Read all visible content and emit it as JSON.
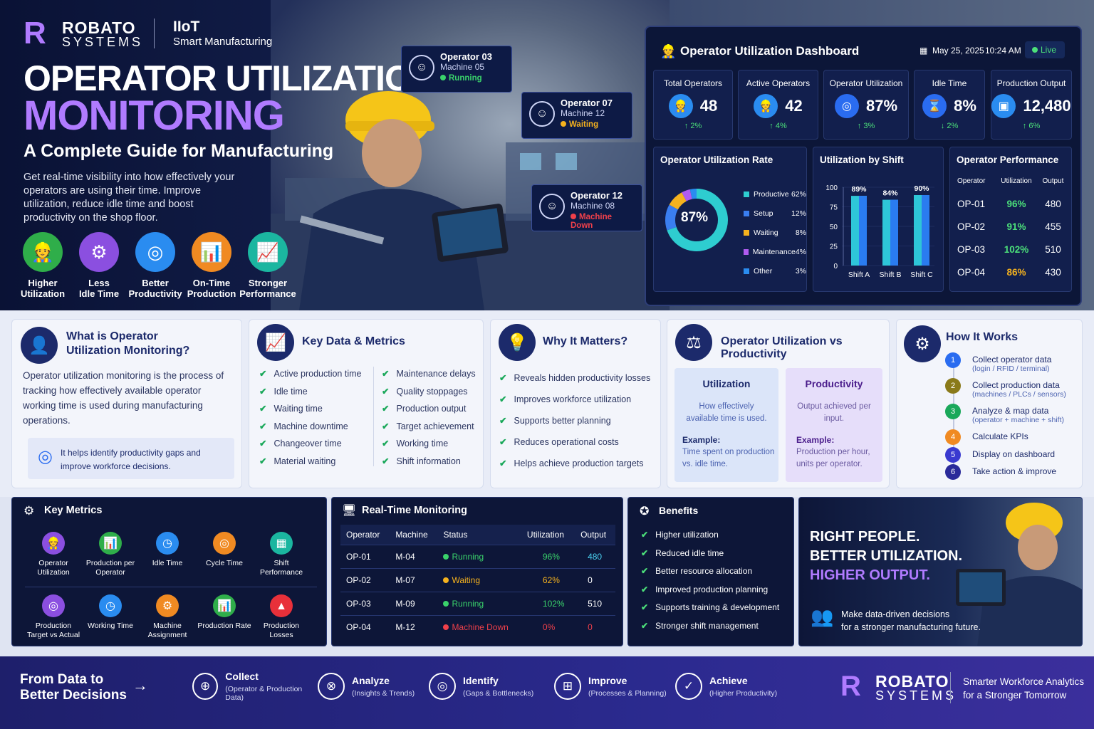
{
  "brand": {
    "name": "ROBATO",
    "sub": "SYSTEMS",
    "tag1": "IIoT",
    "tag2": "Smart Manufacturing"
  },
  "hero": {
    "title1": "OPERATOR UTILIZATION",
    "title2": "MONITORING",
    "subtitle": "A Complete Guide for Manufacturing",
    "desc": "Get real-time visibility into how effectively your operators are using their time. Improve utilization, reduce idle time and boost productivity on the shop floor.",
    "benefits": [
      {
        "l1": "Higher",
        "l2": "Utilization",
        "color": "#2fae4a",
        "icon": "operator-icon"
      },
      {
        "l1": "Less",
        "l2": "Idle Time",
        "color": "#8b4fe0",
        "icon": "gear-icon"
      },
      {
        "l1": "Better",
        "l2": "Productivity",
        "color": "#2a8cf0",
        "icon": "target-icon"
      },
      {
        "l1": "On-Time",
        "l2": "Production",
        "color": "#f08a22",
        "icon": "chart-icon"
      },
      {
        "l1": "Stronger",
        "l2": "Performance",
        "color": "#1bb6a0",
        "icon": "growth-icon"
      }
    ],
    "operators": [
      {
        "name": "Operator 03",
        "machine": "Machine 05",
        "status": "Running",
        "color": "#3ad26b"
      },
      {
        "name": "Operator 07",
        "machine": "Machine 12",
        "status": "Waiting",
        "color": "#f5b21e"
      },
      {
        "name": "Operator 12",
        "machine": "Machine 08",
        "status": "Machine Down",
        "color": "#f0404a"
      }
    ]
  },
  "dashboard": {
    "title": "Operator Utilization Dashboard",
    "date": "May 25, 2025",
    "time": "10:24 AM",
    "live": "Live",
    "kpis": [
      {
        "label": "Total Operators",
        "value": "48",
        "change": "↑ 2%",
        "color": "#2a8cf0",
        "icon": "operator-icon"
      },
      {
        "label": "Active Operators",
        "value": "42",
        "change": "↑ 4%",
        "color": "#2a8cf0",
        "icon": "operator-icon"
      },
      {
        "label": "Operator Utilization",
        "value": "87%",
        "change": "↑ 3%",
        "color": "#2a6cf0",
        "icon": "target-icon"
      },
      {
        "label": "Idle Time",
        "value": "8%",
        "change": "↓ 2%",
        "color": "#2a6cf0",
        "icon": "hourglass-icon"
      },
      {
        "label": "Production Output",
        "value": "12,480",
        "change": "↑ 6%",
        "color": "#2a8cf0",
        "icon": "box-icon"
      }
    ],
    "rate": {
      "title": "Operator Utilization Rate",
      "center": "87%",
      "items": [
        {
          "label": "Productive",
          "value": "62%",
          "pct": 62,
          "color": "#2ecdd0"
        },
        {
          "label": "Setup",
          "value": "12%",
          "pct": 12,
          "color": "#3a7ef0"
        },
        {
          "label": "Waiting",
          "value": "8%",
          "pct": 8,
          "color": "#f5b21e"
        },
        {
          "label": "Maintenance",
          "value": "4%",
          "pct": 4,
          "color": "#b05bf0"
        },
        {
          "label": "Other",
          "value": "3%",
          "pct": 3,
          "color": "#2a8cf0"
        }
      ]
    },
    "shift": {
      "title": "Utilization by Shift",
      "ticks": [
        "100",
        "75",
        "50",
        "25",
        "0"
      ],
      "bars": [
        {
          "label": "Shift A",
          "value": 89,
          "text": "89%"
        },
        {
          "label": "Shift B",
          "value": 84,
          "text": "84%"
        },
        {
          "label": "Shift C",
          "value": 90,
          "text": "90%"
        }
      ]
    },
    "perf": {
      "title": "Operator Performance",
      "headers": [
        "Operator",
        "Utilization",
        "Output"
      ],
      "rows": [
        [
          "OP-01",
          "96%",
          "480"
        ],
        [
          "OP-02",
          "91%",
          "455"
        ],
        [
          "OP-03",
          "102%",
          "510"
        ],
        [
          "OP-04",
          "86%",
          "430"
        ]
      ]
    }
  },
  "what": {
    "title1": "What is Operator",
    "title2": "Utilization Monitoring?",
    "body": "Operator utilization monitoring is the process of tracking how effectively available operator working time is used during manufacturing operations.",
    "note": "It helps identify productivity gaps and improve workforce decisions."
  },
  "keydata": {
    "title": "Key Data & Metrics",
    "left": [
      "Active production time",
      "Idle time",
      "Waiting time",
      "Machine downtime",
      "Changeover time",
      "Material waiting"
    ],
    "right": [
      "Maintenance delays",
      "Quality stoppages",
      "Production output",
      "Target achievement",
      "Working time",
      "Shift information"
    ]
  },
  "why": {
    "title": "Why It Matters?",
    "items": [
      "Reveals hidden productivity losses",
      "Improves workforce utilization",
      "Supports better planning",
      "Reduces operational costs",
      "Helps achieve production targets"
    ]
  },
  "vs": {
    "title": "Operator Utilization vs Productivity",
    "util": {
      "h": "Utilization",
      "d": "How effectively available time is used.",
      "ex": "Example:",
      "exd": "Time spent on production vs. idle time."
    },
    "prod": {
      "h": "Productivity",
      "d": "Output achieved per input.",
      "ex": "Example:",
      "exd": "Production per hour, units per operator."
    }
  },
  "how": {
    "title": "How It Works",
    "steps": [
      {
        "n": "1",
        "t": "Collect operator data",
        "s": "(login / RFID / terminal)",
        "c": "#2a6cf0"
      },
      {
        "n": "2",
        "t": "Collect production data",
        "s": "(machines / PLCs / sensors)",
        "c": "#8a7a1a"
      },
      {
        "n": "3",
        "t": "Analyze & map data",
        "s": "(operator + machine + shift)",
        "c": "#1aa85a"
      },
      {
        "n": "4",
        "t": "Calculate KPIs",
        "s": "",
        "c": "#f08a22"
      },
      {
        "n": "5",
        "t": "Display on dashboard",
        "s": "",
        "c": "#3a3ad0"
      },
      {
        "n": "6",
        "t": "Take action & improve",
        "s": "",
        "c": "#2a2a9a"
      }
    ]
  },
  "keymetrics": {
    "title": "Key Metrics",
    "row1": [
      {
        "l": "Operator Utilization",
        "c": "#8b4fe0",
        "icon": "operator-icon"
      },
      {
        "l": "Production per Operator",
        "c": "#2fae4a",
        "icon": "chart-icon"
      },
      {
        "l": "Idle Time",
        "c": "#2a8cf0",
        "icon": "clock-icon"
      },
      {
        "l": "Cycle Time",
        "c": "#f08a22",
        "icon": "target-icon"
      },
      {
        "l": "Shift Performance",
        "c": "#1bb6a0",
        "icon": "calendar-icon"
      }
    ],
    "row2": [
      {
        "l": "Production Target vs Actual",
        "c": "#8b4fe0",
        "icon": "target-icon"
      },
      {
        "l": "Working Time",
        "c": "#2a8cf0",
        "icon": "clock-icon"
      },
      {
        "l": "Machine Assignment",
        "c": "#f08a22",
        "icon": "gear-icon"
      },
      {
        "l": "Production Rate",
        "c": "#2fae4a",
        "icon": "chart-icon"
      },
      {
        "l": "Production Losses",
        "c": "#e8303a",
        "icon": "warning-icon"
      }
    ]
  },
  "rt": {
    "title": "Real-Time Monitoring",
    "headers": [
      "Operator",
      "Machine",
      "Status",
      "Utilization",
      "Output"
    ],
    "rows": [
      {
        "op": "OP-01",
        "m": "M-04",
        "s": "Running",
        "sc": "#3ad26b",
        "u": "96%",
        "o": "480",
        "oc": "#4ad0f0"
      },
      {
        "op": "OP-02",
        "m": "M-07",
        "s": "Waiting",
        "sc": "#f5b21e",
        "u": "62%",
        "o": "0",
        "oc": "#ffffff"
      },
      {
        "op": "OP-03",
        "m": "M-09",
        "s": "Running",
        "sc": "#3ad26b",
        "u": "102%",
        "o": "510",
        "oc": "#ffffff"
      },
      {
        "op": "OP-04",
        "m": "M-12",
        "s": "Machine Down",
        "sc": "#f0404a",
        "u": "0%",
        "o": "0",
        "oc": "#f0404a"
      }
    ]
  },
  "benefits": {
    "title": "Benefits",
    "items": [
      "Higher utilization",
      "Reduced idle time",
      "Better resource allocation",
      "Improved production planning",
      "Supports training & development",
      "Stronger shift management"
    ]
  },
  "promo": {
    "l1": "RIGHT PEOPLE.",
    "l2": "BETTER UTILIZATION.",
    "l3": "HIGHER OUTPUT.",
    "t1": "Make data-driven decisions",
    "t2": "for a stronger manufacturing future."
  },
  "footer": {
    "h1": "From Data to",
    "h2": "Better Decisions",
    "steps": [
      {
        "n": "Collect",
        "d": "(Operator & Production Data)"
      },
      {
        "n": "Analyze",
        "d": "(Insights & Trends)"
      },
      {
        "n": "Identify",
        "d": "(Gaps & Bottlenecks)"
      },
      {
        "n": "Improve",
        "d": "(Processes & Planning)"
      },
      {
        "n": "Achieve",
        "d": "(Higher Productivity)"
      }
    ],
    "tag1": "Smarter Workforce Analytics",
    "tag2": "for a Stronger Tomorrow"
  }
}
